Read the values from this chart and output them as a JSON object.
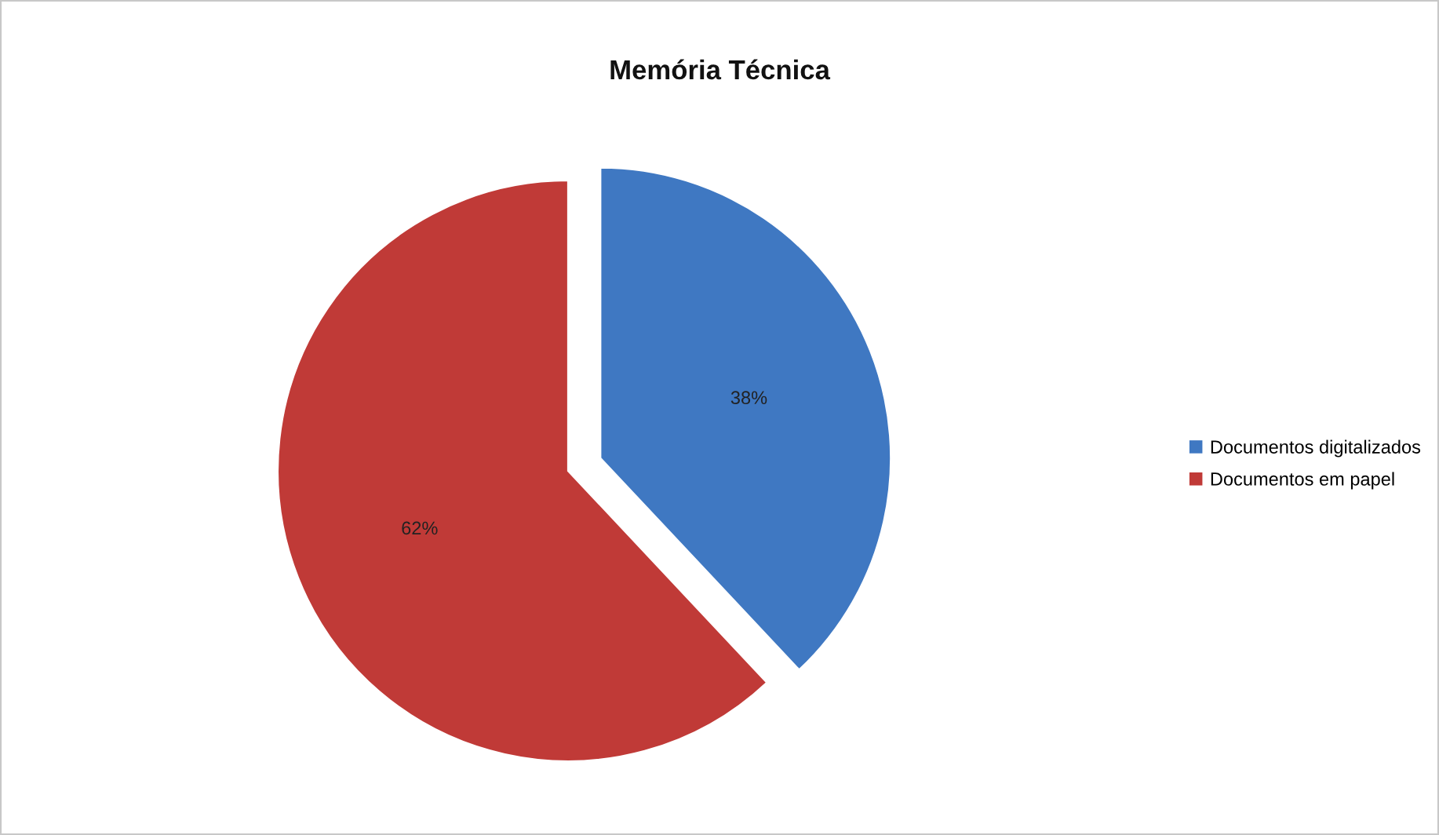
{
  "chart_data": {
    "type": "pie",
    "title": "Memória Técnica",
    "categories": [
      "Documentos digitalizados",
      "Documentos em papel"
    ],
    "values": [
      38,
      62
    ],
    "colors": [
      "#3f78c2",
      "#c03a37"
    ],
    "value_labels": [
      "38%",
      "62%"
    ],
    "legend": "right"
  }
}
